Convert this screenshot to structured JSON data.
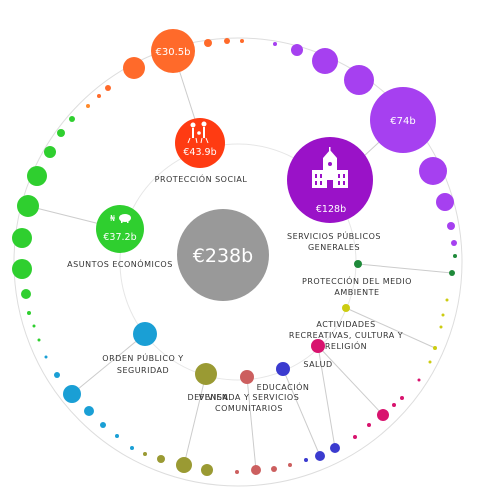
{
  "total": {
    "value": "€238b",
    "color": "#999999"
  },
  "categories": [
    {
      "id": "proteccion-social",
      "value": "€43.9b",
      "label_lines": [
        "PROTECCIÓN SOCIAL"
      ],
      "color": "#ff3b12",
      "icon": "family-icon"
    },
    {
      "id": "servicios-publicos",
      "value": "€128b",
      "label_lines": [
        "SERVICIOS PÚBLICOS",
        "GENERALES"
      ],
      "color": "#9a12c8",
      "icon": "city-hall-icon"
    },
    {
      "id": "asuntos-economicos",
      "value": "€37.2b",
      "label_lines": [
        "ASUNTOS ECONÓMICOS"
      ],
      "color": "#2fcf2f",
      "icon": "money-pig-icon"
    },
    {
      "id": "orden-publico",
      "value": "",
      "label_lines": [
        "ORDEN PÚBLICO Y",
        "SEGURIDAD"
      ],
      "color": "#1a9fd5"
    },
    {
      "id": "defensa",
      "value": "",
      "label_lines": [
        "DEFENSA"
      ],
      "color": "#9a9a33"
    },
    {
      "id": "vivienda",
      "value": "",
      "label_lines": [
        "VIVIENDA Y SERVICIOS",
        "COMUNITARIOS"
      ],
      "color": "#cc5f5f"
    },
    {
      "id": "educacion",
      "value": "",
      "label_lines": [
        "EDUCACIÓN"
      ],
      "color": "#3b3bcf"
    },
    {
      "id": "salud",
      "value": "",
      "label_lines": [
        "SALUD"
      ],
      "color": "#d8136e"
    },
    {
      "id": "actividades",
      "value": "",
      "label_lines": [
        "ACTIVIDADES",
        "RECREATIVAS, CULTURA Y",
        "RELIGIÓN"
      ],
      "color": "#cccc11"
    },
    {
      "id": "medio-ambiente",
      "value": "",
      "label_lines": [
        "PROTECCIÓN DEL MEDIO",
        "AMBIENTE"
      ],
      "color": "#1f8a3a"
    }
  ],
  "outer": [
    {
      "value": "€30.5b",
      "color": "#ff6a2a",
      "parent": "proteccion-social"
    },
    {
      "value": "€74b",
      "color": "#a640f0",
      "parent": "servicios-publicos"
    }
  ]
}
